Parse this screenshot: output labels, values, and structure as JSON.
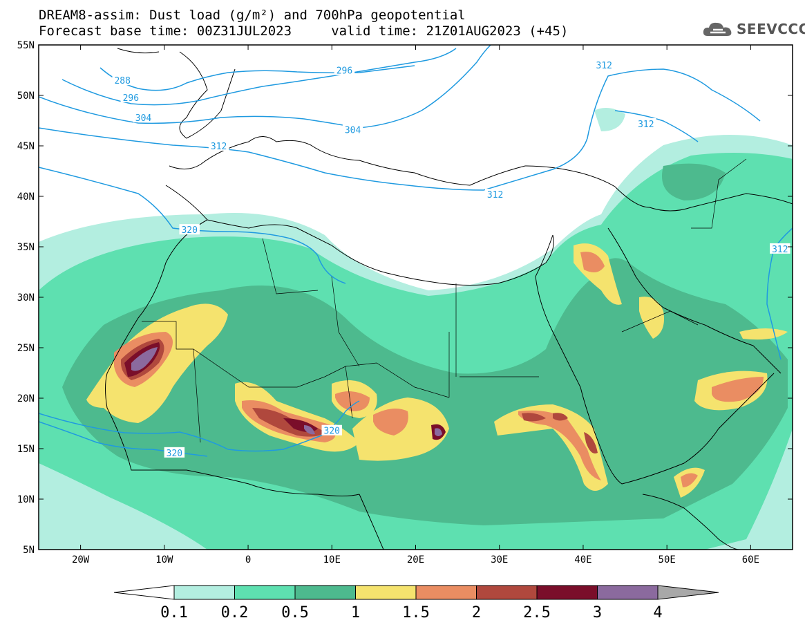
{
  "header": {
    "line1": "DREAM8-assim: Dust load (g/m²) and 700hPa geopotential",
    "line2": "Forecast base time: 00Z31JUL2023     valid time: 21Z01AUG2023 (+45)"
  },
  "logo": {
    "text": "SEEVCCC",
    "icon": "cloud-icon"
  },
  "axes": {
    "lat_labels": [
      "55N",
      "50N",
      "45N",
      "40N",
      "35N",
      "30N",
      "25N",
      "20N",
      "15N",
      "10N",
      "5N"
    ],
    "lat_values": [
      55,
      50,
      45,
      40,
      35,
      30,
      25,
      20,
      15,
      10,
      5
    ],
    "lon_labels": [
      "20W",
      "10W",
      "0",
      "10E",
      "20E",
      "30E",
      "40E",
      "50E",
      "60E"
    ],
    "lon_values": [
      -20,
      -10,
      0,
      10,
      20,
      30,
      40,
      50,
      60
    ],
    "lon_range": [
      -25,
      65
    ],
    "lat_range": [
      5,
      55
    ]
  },
  "contour_labels": [
    {
      "text": "288",
      "lon": -15.0,
      "lat": 51.5
    },
    {
      "text": "296",
      "lon": -14.0,
      "lat": 49.8
    },
    {
      "text": "304",
      "lon": -12.5,
      "lat": 47.8
    },
    {
      "text": "312",
      "lon": -3.5,
      "lat": 45.0
    },
    {
      "text": "296",
      "lon": 11.5,
      "lat": 52.5
    },
    {
      "text": "304",
      "lon": 12.5,
      "lat": 46.6
    },
    {
      "text": "312",
      "lon": 42.5,
      "lat": 53.0
    },
    {
      "text": "312",
      "lon": 47.5,
      "lat": 47.2
    },
    {
      "text": "312",
      "lon": 29.5,
      "lat": 40.2
    },
    {
      "text": "320",
      "lon": -7.0,
      "lat": 36.7
    },
    {
      "text": "312",
      "lon": 63.5,
      "lat": 34.8
    },
    {
      "text": "320",
      "lon": 10.0,
      "lat": 16.8
    },
    {
      "text": "320",
      "lon": -8.8,
      "lat": 14.6
    }
  ],
  "colorbar": {
    "labels": [
      "0.1",
      "0.2",
      "0.5",
      "1",
      "1.5",
      "2",
      "2.5",
      "3",
      "4"
    ],
    "colors": [
      "#ffffff",
      "#b3eee0",
      "#5ee0b0",
      "#4dba8e",
      "#f5e36e",
      "#ea8d62",
      "#b0483d",
      "#7a0e2a",
      "#8b6a9e",
      "#a8a8a8"
    ]
  },
  "map_colors": {
    "land_border": "#000000",
    "geopotential_line": "#1f9ae0"
  }
}
